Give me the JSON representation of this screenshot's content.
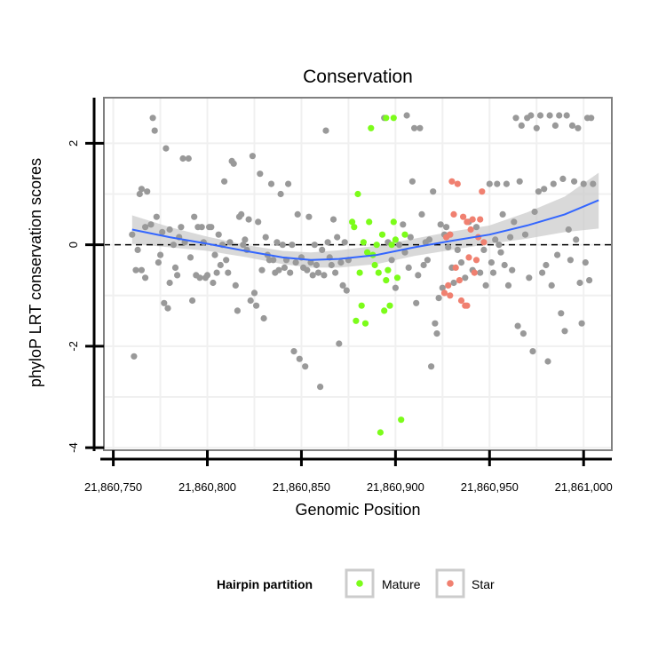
{
  "chart_data": {
    "type": "scatter",
    "title": "Conservation",
    "xlabel": "Genomic Position",
    "ylabel": "phyloP LRT conservation scores",
    "xlim": [
      21860745,
      21861015
    ],
    "ylim": [
      -4.05,
      2.9
    ],
    "x_ticks": [
      21860750,
      21860800,
      21860850,
      21860900,
      21860950,
      21861000
    ],
    "x_tick_labels": [
      "21,860,750",
      "21,860,800",
      "21,860,850",
      "21,860,900",
      "21,860,950",
      "21,861,000"
    ],
    "y_ticks": [
      -4,
      -2,
      0,
      2
    ],
    "y_tick_labels": [
      "-4",
      "-2",
      "0",
      "2"
    ],
    "reference_line": {
      "y": 0,
      "style": "dashed"
    },
    "grid": true,
    "colors": {
      "other": "#999999",
      "Mature": "#7cfc1a",
      "Star": "#f08070",
      "smooth_line": "#3366ff",
      "ribbon": "#cccccc",
      "panel_border": "#808080",
      "grid": "#f0f0f0"
    },
    "legend": {
      "title": "Hairpin partition",
      "position": "bottom",
      "entries": [
        {
          "label": "Mature",
          "series": "Mature"
        },
        {
          "label": "Star",
          "series": "Star"
        }
      ]
    },
    "smooth": {
      "x": [
        21860760,
        21860780,
        21860800,
        21860820,
        21860840,
        21860855,
        21860870,
        21860890,
        21860910,
        21860930,
        21860950,
        21860970,
        21860990,
        21861008
      ],
      "y": [
        0.3,
        0.15,
        0.02,
        -0.12,
        -0.25,
        -0.3,
        -0.28,
        -0.2,
        -0.05,
        0.08,
        0.2,
        0.38,
        0.6,
        0.88
      ],
      "lower": [
        0.02,
        -0.05,
        -0.12,
        -0.24,
        -0.38,
        -0.45,
        -0.45,
        -0.38,
        -0.22,
        -0.1,
        0.02,
        0.12,
        0.25,
        0.32
      ],
      "upper": [
        0.58,
        0.35,
        0.16,
        0.0,
        -0.12,
        -0.15,
        -0.11,
        -0.02,
        0.12,
        0.26,
        0.38,
        0.64,
        0.95,
        1.42
      ]
    },
    "series": [
      {
        "name": "other",
        "points": [
          [
            21860760,
            0.2
          ],
          [
            21860761,
            -2.2
          ],
          [
            21860762,
            -0.5
          ],
          [
            21860763,
            -0.1
          ],
          [
            21860764,
            1.0
          ],
          [
            21860765,
            1.1
          ],
          [
            21860765,
            -0.5
          ],
          [
            21860767,
            -0.65
          ],
          [
            21860767,
            0.35
          ],
          [
            21860768,
            1.05
          ],
          [
            21860770,
            0.4
          ],
          [
            21860771,
            2.5
          ],
          [
            21860772,
            2.25
          ],
          [
            21860773,
            0.55
          ],
          [
            21860774,
            -0.35
          ],
          [
            21860775,
            -0.2
          ],
          [
            21860776,
            0.25
          ],
          [
            21860777,
            -1.15
          ],
          [
            21860778,
            1.9
          ],
          [
            21860779,
            -1.25
          ],
          [
            21860780,
            0.3
          ],
          [
            21860780,
            -0.75
          ],
          [
            21860782,
            0.0
          ],
          [
            21860783,
            -0.45
          ],
          [
            21860784,
            -0.6
          ],
          [
            21860785,
            0.15
          ],
          [
            21860786,
            0.35
          ],
          [
            21860787,
            1.7
          ],
          [
            21860788,
            0.05
          ],
          [
            21860790,
            1.7
          ],
          [
            21860791,
            -0.25
          ],
          [
            21860792,
            -1.1
          ],
          [
            21860793,
            0.55
          ],
          [
            21860794,
            -0.6
          ],
          [
            21860795,
            0.35
          ],
          [
            21860796,
            -0.65
          ],
          [
            21860797,
            0.35
          ],
          [
            21860798,
            0.05
          ],
          [
            21860799,
            -0.65
          ],
          [
            21860800,
            -0.6
          ],
          [
            21860801,
            0.35
          ],
          [
            21860802,
            0.35
          ],
          [
            21860803,
            -0.75
          ],
          [
            21860804,
            -0.2
          ],
          [
            21860805,
            -0.55
          ],
          [
            21860806,
            0.2
          ],
          [
            21860807,
            -0.4
          ],
          [
            21860808,
            0.0
          ],
          [
            21860809,
            1.25
          ],
          [
            21860810,
            -0.3
          ],
          [
            21860811,
            -0.55
          ],
          [
            21860812,
            0.05
          ],
          [
            21860813,
            1.65
          ],
          [
            21860814,
            1.6
          ],
          [
            21860815,
            -0.8
          ],
          [
            21860816,
            -1.3
          ],
          [
            21860817,
            0.55
          ],
          [
            21860818,
            0.6
          ],
          [
            21860819,
            0.0
          ],
          [
            21860820,
            0.1
          ],
          [
            21860821,
            -0.1
          ],
          [
            21860822,
            0.5
          ],
          [
            21860823,
            -1.1
          ],
          [
            21860824,
            1.75
          ],
          [
            21860825,
            -0.95
          ],
          [
            21860826,
            -1.2
          ],
          [
            21860827,
            0.45
          ],
          [
            21860828,
            1.4
          ],
          [
            21860829,
            -0.5
          ],
          [
            21860830,
            -1.45
          ],
          [
            21860831,
            0.15
          ],
          [
            21860832,
            -0.2
          ],
          [
            21860833,
            -0.3
          ],
          [
            21860834,
            1.2
          ],
          [
            21860835,
            -0.3
          ],
          [
            21860836,
            -0.55
          ],
          [
            21860837,
            0.05
          ],
          [
            21860838,
            -0.5
          ],
          [
            21860839,
            1.0
          ],
          [
            21860840,
            0.0
          ],
          [
            21860841,
            -0.45
          ],
          [
            21860842,
            -0.3
          ],
          [
            21860843,
            1.2
          ],
          [
            21860844,
            -0.55
          ],
          [
            21860845,
            0.0
          ],
          [
            21860846,
            -2.1
          ],
          [
            21860847,
            -0.35
          ],
          [
            21860848,
            0.6
          ],
          [
            21860849,
            -2.25
          ],
          [
            21860850,
            -0.25
          ],
          [
            21860851,
            -0.45
          ],
          [
            21860852,
            -2.4
          ],
          [
            21860853,
            -0.5
          ],
          [
            21860854,
            0.55
          ],
          [
            21860855,
            -0.35
          ],
          [
            21860856,
            -0.6
          ],
          [
            21860857,
            0.0
          ],
          [
            21860858,
            -0.4
          ],
          [
            21860859,
            -0.55
          ],
          [
            21860860,
            -2.8
          ],
          [
            21860861,
            -0.1
          ],
          [
            21860862,
            -0.6
          ],
          [
            21860863,
            2.25
          ],
          [
            21860864,
            0.05
          ],
          [
            21860865,
            -0.25
          ],
          [
            21860866,
            -0.4
          ],
          [
            21860867,
            0.5
          ],
          [
            21860868,
            -0.55
          ],
          [
            21860869,
            0.15
          ],
          [
            21860870,
            -1.95
          ],
          [
            21860871,
            -0.35
          ],
          [
            21860872,
            -0.8
          ],
          [
            21860873,
            0.05
          ],
          [
            21860874,
            -0.9
          ],
          [
            21860875,
            -0.3
          ],
          [
            21860894,
            2.5
          ],
          [
            21860896,
            0.05
          ],
          [
            21860898,
            -0.3
          ],
          [
            21860900,
            -0.85
          ],
          [
            21860902,
            0.0
          ],
          [
            21860904,
            0.4
          ],
          [
            21860905,
            -0.15
          ],
          [
            21860906,
            2.55
          ],
          [
            21860907,
            -0.45
          ],
          [
            21860908,
            0.15
          ],
          [
            21860909,
            1.25
          ],
          [
            21860910,
            2.3
          ],
          [
            21860911,
            -1.15
          ],
          [
            21860912,
            -0.6
          ],
          [
            21860913,
            2.3
          ],
          [
            21860914,
            0.6
          ],
          [
            21860915,
            -0.4
          ],
          [
            21860916,
            0.05
          ],
          [
            21860917,
            -0.3
          ],
          [
            21860918,
            0.1
          ],
          [
            21860919,
            -2.4
          ],
          [
            21860920,
            1.05
          ],
          [
            21860921,
            -1.55
          ],
          [
            21860922,
            -1.75
          ],
          [
            21860923,
            -1.05
          ],
          [
            21860924,
            0.4
          ],
          [
            21860925,
            -0.85
          ],
          [
            21860926,
            0.2
          ],
          [
            21860927,
            0.35
          ],
          [
            21860928,
            -0.05
          ],
          [
            21860929,
            0.2
          ],
          [
            21860930,
            -0.45
          ],
          [
            21860931,
            -0.75
          ],
          [
            21860933,
            -0.1
          ],
          [
            21860935,
            -0.35
          ],
          [
            21860937,
            -0.65
          ],
          [
            21860939,
            0.45
          ],
          [
            21860941,
            -0.5
          ],
          [
            21860943,
            0.35
          ],
          [
            21860945,
            -0.55
          ],
          [
            21860947,
            -0.1
          ],
          [
            21860948,
            -0.8
          ],
          [
            21860950,
            1.2
          ],
          [
            21860951,
            -0.35
          ],
          [
            21860952,
            -0.55
          ],
          [
            21860953,
            0.1
          ],
          [
            21860954,
            1.2
          ],
          [
            21860955,
            0.0
          ],
          [
            21860956,
            -0.15
          ],
          [
            21860957,
            0.6
          ],
          [
            21860958,
            -0.4
          ],
          [
            21860959,
            1.2
          ],
          [
            21860960,
            -0.8
          ],
          [
            21860961,
            0.15
          ],
          [
            21860962,
            -0.5
          ],
          [
            21860963,
            0.45
          ],
          [
            21860964,
            2.5
          ],
          [
            21860965,
            -1.6
          ],
          [
            21860966,
            1.25
          ],
          [
            21860967,
            2.35
          ],
          [
            21860968,
            -1.75
          ],
          [
            21860969,
            0.2
          ],
          [
            21860970,
            2.5
          ],
          [
            21860971,
            -0.65
          ],
          [
            21860972,
            2.55
          ],
          [
            21860973,
            -2.1
          ],
          [
            21860974,
            0.65
          ],
          [
            21860975,
            2.3
          ],
          [
            21860976,
            1.05
          ],
          [
            21860977,
            2.55
          ],
          [
            21860978,
            -0.55
          ],
          [
            21860979,
            1.1
          ],
          [
            21860980,
            -0.4
          ],
          [
            21860981,
            -2.3
          ],
          [
            21860982,
            2.55
          ],
          [
            21860983,
            -0.8
          ],
          [
            21860984,
            1.2
          ],
          [
            21860985,
            2.35
          ],
          [
            21860986,
            -0.2
          ],
          [
            21860987,
            2.55
          ],
          [
            21860988,
            -1.35
          ],
          [
            21860989,
            1.3
          ],
          [
            21860990,
            -1.7
          ],
          [
            21860991,
            2.55
          ],
          [
            21860992,
            0.3
          ],
          [
            21860993,
            -0.3
          ],
          [
            21860994,
            2.35
          ],
          [
            21860995,
            1.25
          ],
          [
            21860996,
            0.1
          ],
          [
            21860997,
            2.3
          ],
          [
            21860998,
            -0.75
          ],
          [
            21860999,
            -1.55
          ],
          [
            21861000,
            1.2
          ],
          [
            21861001,
            -0.35
          ],
          [
            21861002,
            2.5
          ],
          [
            21861003,
            -0.7
          ],
          [
            21861004,
            2.5
          ],
          [
            21861005,
            1.2
          ]
        ]
      },
      {
        "name": "Mature",
        "points": [
          [
            21860877,
            0.45
          ],
          [
            21860878,
            0.35
          ],
          [
            21860879,
            -1.5
          ],
          [
            21860880,
            1.0
          ],
          [
            21860881,
            -0.55
          ],
          [
            21860882,
            -1.2
          ],
          [
            21860883,
            0.05
          ],
          [
            21860884,
            -1.55
          ],
          [
            21860885,
            -0.15
          ],
          [
            21860886,
            0.45
          ],
          [
            21860887,
            2.3
          ],
          [
            21860888,
            -0.2
          ],
          [
            21860889,
            -0.4
          ],
          [
            21860890,
            0.0
          ],
          [
            21860891,
            -0.55
          ],
          [
            21860892,
            -3.7
          ],
          [
            21860893,
            0.2
          ],
          [
            21860894,
            -1.3
          ],
          [
            21860895,
            -0.7
          ],
          [
            21860896,
            -0.5
          ],
          [
            21860897,
            -1.2
          ],
          [
            21860898,
            0.0
          ],
          [
            21860899,
            0.45
          ],
          [
            21860900,
            0.1
          ],
          [
            21860901,
            -0.65
          ],
          [
            21860903,
            -3.45
          ],
          [
            21860905,
            0.2
          ],
          [
            21860895,
            2.5
          ],
          [
            21860899,
            2.5
          ]
        ]
      },
      {
        "name": "Star",
        "points": [
          [
            21860926,
            -0.95
          ],
          [
            21860927,
            0.15
          ],
          [
            21860928,
            -0.8
          ],
          [
            21860929,
            -1.0
          ],
          [
            21860930,
            1.25
          ],
          [
            21860931,
            0.6
          ],
          [
            21860932,
            -0.45
          ],
          [
            21860933,
            1.2
          ],
          [
            21860934,
            -0.7
          ],
          [
            21860935,
            -1.1
          ],
          [
            21860936,
            0.55
          ],
          [
            21860937,
            -1.2
          ],
          [
            21860938,
            0.45
          ],
          [
            21860939,
            -0.25
          ],
          [
            21860940,
            0.3
          ],
          [
            21860941,
            0.5
          ],
          [
            21860942,
            -0.55
          ],
          [
            21860943,
            -0.3
          ],
          [
            21860944,
            0.15
          ],
          [
            21860945,
            0.5
          ],
          [
            21860946,
            1.05
          ],
          [
            21860947,
            0.05
          ],
          [
            21860929,
            0.2
          ],
          [
            21860938,
            -1.2
          ]
        ]
      }
    ]
  }
}
